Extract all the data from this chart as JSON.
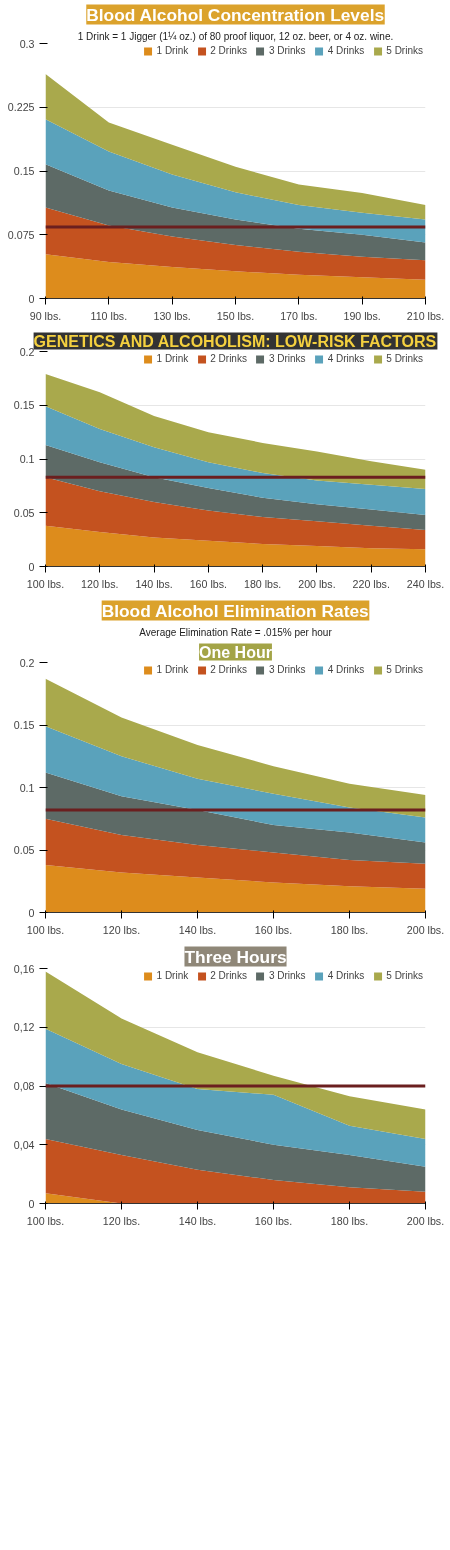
{
  "chart_data": [
    {
      "type": "area",
      "stacked": true,
      "title": "Blood Alcohol Concentration Levels",
      "subtitle": "1 Drink = 1 Jigger (1¼ oz.) of 80 proof liquor, 12 oz. beer, or 4 oz. wine.",
      "x": [
        90,
        110,
        130,
        150,
        170,
        190,
        210
      ],
      "xlim": [
        90,
        210
      ],
      "xticks": [
        {
          "value": 90,
          "label": "90 lbs."
        },
        {
          "value": 110,
          "label": "110 lbs."
        },
        {
          "value": 130,
          "label": "130 lbs."
        },
        {
          "value": 150,
          "label": "150 lbs."
        },
        {
          "value": 170,
          "label": "170 lbs."
        },
        {
          "value": 190,
          "label": "190 lbs."
        },
        {
          "value": 210,
          "label": "210 lbs."
        }
      ],
      "ylim": [
        0,
        0.3
      ],
      "yticks": [
        0,
        0.075,
        0.15,
        0.225,
        0.3
      ],
      "grid": "y",
      "legend": "top right",
      "ref_lines": [
        {
          "axis": "y",
          "value": 0.084,
          "color": "#6b1f1f"
        }
      ],
      "series": [
        {
          "name": "1 Drink",
          "color": "#dd8c1c",
          "values": [
            0.052,
            0.043,
            0.037,
            0.032,
            0.028,
            0.025,
            0.022
          ]
        },
        {
          "name": "2 Drinks",
          "color": "#c4521f",
          "values": [
            0.055,
            0.043,
            0.036,
            0.031,
            0.027,
            0.024,
            0.023
          ]
        },
        {
          "name": "3 Drinks",
          "color": "#5d6a66",
          "values": [
            0.051,
            0.041,
            0.034,
            0.03,
            0.027,
            0.026,
            0.021
          ]
        },
        {
          "name": "4 Drinks",
          "color": "#5aa2bb",
          "values": [
            0.053,
            0.046,
            0.039,
            0.032,
            0.028,
            0.026,
            0.027
          ]
        },
        {
          "name": "5 Drinks",
          "color": "#a9a94c",
          "values": [
            0.053,
            0.034,
            0.035,
            0.03,
            0.024,
            0.023,
            0.017
          ]
        }
      ]
    },
    {
      "type": "area",
      "stacked": true,
      "annotations": [
        "GENETICS AND ALCOHOLISM: LOW-RISK FACTORS"
      ],
      "x": [
        100,
        120,
        140,
        160,
        180,
        200,
        220,
        240
      ],
      "xlim": [
        100,
        240
      ],
      "xticks": [
        {
          "value": 100,
          "label": "100 lbs."
        },
        {
          "value": 120,
          "label": "120 lbs."
        },
        {
          "value": 140,
          "label": "140 lbs."
        },
        {
          "value": 160,
          "label": "160 lbs."
        },
        {
          "value": 180,
          "label": "180 lbs."
        },
        {
          "value": 200,
          "label": "200 lbs."
        },
        {
          "value": 220,
          "label": "220 lbs."
        },
        {
          "value": 240,
          "label": "240 lbs."
        }
      ],
      "ylim": [
        0,
        0.2
      ],
      "yticks": [
        0,
        0.05,
        0.1,
        0.15,
        0.2
      ],
      "grid": "y",
      "legend": "top right",
      "ref_lines": [
        {
          "axis": "y",
          "value": 0.083,
          "color": "#6b1f1f"
        }
      ],
      "series": [
        {
          "name": "1 Drink",
          "color": "#dd8c1c",
          "values": [
            0.038,
            0.032,
            0.027,
            0.024,
            0.021,
            0.019,
            0.017,
            0.016
          ]
        },
        {
          "name": "2 Drinks",
          "color": "#c4521f",
          "values": [
            0.045,
            0.038,
            0.033,
            0.028,
            0.025,
            0.023,
            0.021,
            0.018
          ]
        },
        {
          "name": "3 Drinks",
          "color": "#5d6a66",
          "values": [
            0.03,
            0.027,
            0.023,
            0.021,
            0.018,
            0.016,
            0.015,
            0.014
          ]
        },
        {
          "name": "4 Drinks",
          "color": "#5aa2bb",
          "values": [
            0.036,
            0.031,
            0.028,
            0.024,
            0.023,
            0.022,
            0.023,
            0.024
          ]
        },
        {
          "name": "5 Drinks",
          "color": "#a9a94c",
          "values": [
            0.03,
            0.034,
            0.029,
            0.028,
            0.028,
            0.027,
            0.022,
            0.018
          ]
        }
      ]
    },
    {
      "type": "area",
      "stacked": true,
      "title": "Blood Alcohol Elimination Rates",
      "subtitle": "Average Elimination Rate = .015% per hour",
      "annotations": [
        "One Hour"
      ],
      "x": [
        100,
        120,
        140,
        160,
        180,
        200
      ],
      "xlim": [
        100,
        200
      ],
      "xticks": [
        {
          "value": 100,
          "label": "100 lbs."
        },
        {
          "value": 120,
          "label": "120 lbs."
        },
        {
          "value": 140,
          "label": "140 lbs."
        },
        {
          "value": 160,
          "label": "160 lbs."
        },
        {
          "value": 180,
          "label": "180 lbs."
        },
        {
          "value": 200,
          "label": "200 lbs."
        }
      ],
      "ylim": [
        0,
        0.2
      ],
      "yticks": [
        0,
        0.05,
        0.1,
        0.15,
        0.2
      ],
      "grid": "y",
      "legend": "top right",
      "ref_lines": [
        {
          "axis": "y",
          "value": 0.082,
          "color": "#6b1f1f"
        }
      ],
      "series": [
        {
          "name": "1 Drink",
          "color": "#dd8c1c",
          "values": [
            0.038,
            0.032,
            0.028,
            0.024,
            0.021,
            0.019
          ]
        },
        {
          "name": "2 Drinks",
          "color": "#c4521f",
          "values": [
            0.037,
            0.03,
            0.026,
            0.024,
            0.021,
            0.02
          ]
        },
        {
          "name": "3 Drinks",
          "color": "#5d6a66",
          "values": [
            0.037,
            0.031,
            0.028,
            0.022,
            0.022,
            0.017
          ]
        },
        {
          "name": "4 Drinks",
          "color": "#5aa2bb",
          "values": [
            0.037,
            0.032,
            0.025,
            0.025,
            0.02,
            0.02
          ]
        },
        {
          "name": "5 Drinks",
          "color": "#a9a94c",
          "values": [
            0.038,
            0.031,
            0.027,
            0.022,
            0.019,
            0.018
          ]
        }
      ]
    },
    {
      "type": "area",
      "stacked": true,
      "title": "Three Hours",
      "x": [
        100,
        120,
        140,
        160,
        180,
        200
      ],
      "xlim": [
        100,
        200
      ],
      "xticks": [
        {
          "value": 100,
          "label": "100 lbs."
        },
        {
          "value": 120,
          "label": "120 lbs."
        },
        {
          "value": 140,
          "label": "140 lbs."
        },
        {
          "value": 160,
          "label": "160 lbs."
        },
        {
          "value": 180,
          "label": "180 lbs."
        },
        {
          "value": 200,
          "label": "200 lbs."
        }
      ],
      "ylim": [
        0,
        0.16
      ],
      "yticks": [
        0,
        {
          "value": 0.04,
          "label": "0,04"
        },
        {
          "value": 0.08,
          "label": "0,08"
        },
        {
          "value": 0.12,
          "label": "0,12"
        },
        {
          "value": 0.16,
          "label": "0,16"
        }
      ],
      "grid": "y",
      "legend": "top right",
      "ref_lines": [
        {
          "axis": "y",
          "value": 0.08,
          "color": "#6b1f1f"
        }
      ],
      "series": [
        {
          "name": "1 Drink",
          "color": "#dd8c1c",
          "values": [
            0.007,
            0,
            0,
            0,
            0,
            0
          ]
        },
        {
          "name": "2 Drinks",
          "color": "#c4521f",
          "values": [
            0.037,
            0.033,
            0.023,
            0.016,
            0.011,
            0.008
          ]
        },
        {
          "name": "3 Drinks",
          "color": "#5d6a66",
          "values": [
            0.038,
            0.031,
            0.027,
            0.024,
            0.022,
            0.017
          ]
        },
        {
          "name": "4 Drinks",
          "color": "#5aa2bb",
          "values": [
            0.037,
            0.031,
            0.028,
            0.034,
            0.02,
            0.019
          ]
        },
        {
          "name": "5 Drinks",
          "color": "#a9a94c",
          "values": [
            0.039,
            0.031,
            0.025,
            0.013,
            0.02,
            0.02
          ]
        }
      ]
    }
  ]
}
